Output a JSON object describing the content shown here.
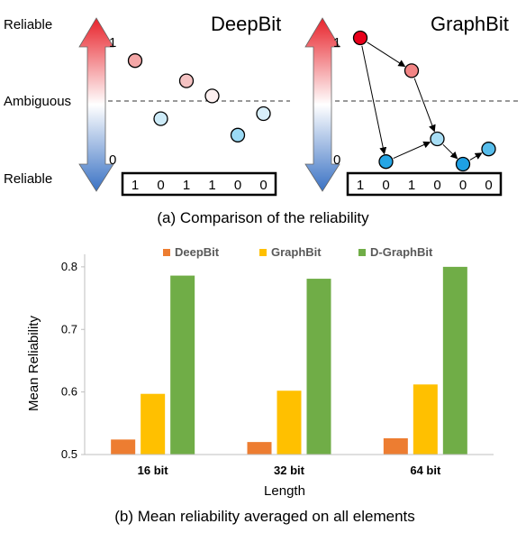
{
  "panel_a": {
    "caption": "(a) Comparison of the reliability",
    "side_labels": {
      "top": "Reliable",
      "middle": "Ambiguous",
      "bottom": "Reliable"
    },
    "scale": {
      "top": "1",
      "bottom": "0"
    },
    "deepbit": {
      "title": "DeepBit",
      "bits": [
        "1",
        "0",
        "1",
        "1",
        "0",
        "0"
      ],
      "points": [
        {
          "bit": 1,
          "value": 0.82,
          "fill": "#f4a7a7"
        },
        {
          "bit": 2,
          "value": 0.36,
          "fill": "#cdebf8"
        },
        {
          "bit": 3,
          "value": 0.66,
          "fill": "#f5c3c3"
        },
        {
          "bit": 4,
          "value": 0.54,
          "fill": "#fdf0f0"
        },
        {
          "bit": 5,
          "value": 0.23,
          "fill": "#9bdaf5"
        },
        {
          "bit": 6,
          "value": 0.4,
          "fill": "#d8effa"
        }
      ]
    },
    "graphbit": {
      "title": "GraphBit",
      "bits": [
        "1",
        "0",
        "1",
        "0",
        "0",
        "0"
      ],
      "points": [
        {
          "bit": 1,
          "value": 1.0,
          "fill": "#e8001a"
        },
        {
          "bit": 2,
          "value": 0.02,
          "fill": "#25a6e6"
        },
        {
          "bit": 3,
          "value": 0.74,
          "fill": "#f28585"
        },
        {
          "bit": 4,
          "value": 0.2,
          "fill": "#a8def5"
        },
        {
          "bit": 5,
          "value": 0.0,
          "fill": "#1ea0e4"
        },
        {
          "bit": 6,
          "value": 0.12,
          "fill": "#57bdeb"
        }
      ],
      "arrows": [
        [
          1,
          3
        ],
        [
          3,
          4
        ],
        [
          1,
          2
        ],
        [
          2,
          4
        ],
        [
          4,
          5
        ],
        [
          5,
          6
        ]
      ]
    },
    "colors": {
      "arrow_top": "#e8232b",
      "arrow_bottom": "#3a72c4",
      "outline": "#000000"
    }
  },
  "chart_data": {
    "type": "bar",
    "title": "",
    "caption": "(b) Mean reliability averaged on all elements",
    "xlabel": "Length",
    "ylabel": "Mean Reliability",
    "categories": [
      "16 bit",
      "32 bit",
      "64 bit"
    ],
    "ylim": [
      0.5,
      0.82
    ],
    "yticks": [
      0.5,
      0.6,
      0.7,
      0.8
    ],
    "ytick_labels": [
      "0.5",
      "0.6",
      "0.7",
      "0.8"
    ],
    "legend_position": "top",
    "grid": false,
    "series": [
      {
        "name": "DeepBit",
        "color": "#ed7d31",
        "values": [
          0.524,
          0.52,
          0.526
        ]
      },
      {
        "name": "GraphBit",
        "color": "#ffc000",
        "values": [
          0.597,
          0.602,
          0.612
        ]
      },
      {
        "name": "D-GraphBit",
        "color": "#70ad47",
        "values": [
          0.786,
          0.781,
          0.8
        ]
      }
    ]
  }
}
